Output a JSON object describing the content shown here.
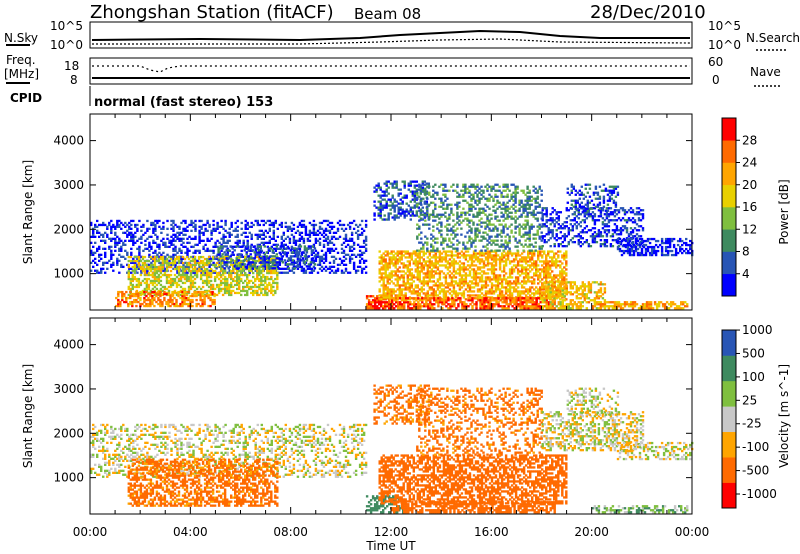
{
  "header": {
    "station": "Zhongshan Station (fitACF)",
    "beam": "Beam 08",
    "date": "28/Dec/2010"
  },
  "summary_panels": {
    "nsky": {
      "left_label": "N.Sky",
      "top_tick": "10^5",
      "bottom_tick": "10^0",
      "right_top_tick": "10^5",
      "right_bottom_tick": "10^0",
      "right_label": "N.Search"
    },
    "freq": {
      "left_label_1": "Freq.",
      "left_label_2": "[MHz]",
      "top_tick": "18",
      "bottom_tick": "8",
      "right_top_tick": "60",
      "right_bottom_tick": "0",
      "right_label": "Nave"
    },
    "cpid": {
      "label": "CPID",
      "mode": "normal (fast stereo) 153"
    }
  },
  "x_axis": {
    "label": "Time UT",
    "ticks": [
      "00:00",
      "04:00",
      "08:00",
      "12:00",
      "16:00",
      "20:00",
      "00:00"
    ],
    "hours": [
      0,
      4,
      8,
      12,
      16,
      20,
      24
    ]
  },
  "colors": {
    "power": [
      "#0000ff",
      "#2855b5",
      "#3e8a5f",
      "#7fbf3f",
      "#e8d000",
      "#ffa500",
      "#ff6a00",
      "#ff0000"
    ],
    "velocity": [
      "#ff0000",
      "#ff6a00",
      "#ffa500",
      "#c8c8c8",
      "#7fbf3f",
      "#3e8a5f",
      "#2855b5"
    ]
  },
  "chart_data": [
    {
      "type": "heatmap",
      "title": "",
      "ylabel": "Slant Range [km]",
      "xlabel": "",
      "ylim": [
        180,
        4600
      ],
      "yticks": [
        1000,
        2000,
        3000,
        4000
      ],
      "colorbar": {
        "label": "Power [dB]",
        "ticks": [
          "4",
          "8",
          "12",
          "16",
          "20",
          "24",
          "28"
        ],
        "range": [
          0,
          32
        ]
      },
      "regions": [
        {
          "t0": 0.0,
          "t1": 11.0,
          "r0": 1000,
          "r1": 2200,
          "val": 3,
          "density": 0.35
        },
        {
          "t0": 1.5,
          "t1": 7.5,
          "r0": 500,
          "r1": 1400,
          "val": 17,
          "density": 0.55
        },
        {
          "t0": 1.0,
          "t1": 5.0,
          "r0": 250,
          "r1": 600,
          "val": 24,
          "density": 0.6
        },
        {
          "t0": 5.0,
          "t1": 9.0,
          "r0": 1100,
          "r1": 1600,
          "val": 6,
          "density": 0.35
        },
        {
          "t0": 11.0,
          "t1": 12.0,
          "r0": 200,
          "r1": 500,
          "val": 28,
          "density": 0.8
        },
        {
          "t0": 11.3,
          "t1": 13.5,
          "r0": 2200,
          "r1": 3100,
          "val": 6,
          "density": 0.45
        },
        {
          "t0": 11.5,
          "t1": 19.0,
          "r0": 400,
          "r1": 1500,
          "val": 21,
          "density": 0.6
        },
        {
          "t0": 12.0,
          "t1": 18.5,
          "r0": 200,
          "r1": 450,
          "val": 26,
          "density": 0.7
        },
        {
          "t0": 13.0,
          "t1": 18.0,
          "r0": 1500,
          "r1": 3000,
          "val": 10,
          "density": 0.35
        },
        {
          "t0": 18.0,
          "t1": 20.5,
          "r0": 200,
          "r1": 800,
          "val": 20,
          "density": 0.55
        },
        {
          "t0": 18.0,
          "t1": 22.0,
          "r0": 1600,
          "r1": 2500,
          "val": 4,
          "density": 0.4
        },
        {
          "t0": 19.0,
          "t1": 21.0,
          "r0": 2400,
          "r1": 3000,
          "val": 5,
          "density": 0.35
        },
        {
          "t0": 20.0,
          "t1": 23.8,
          "r0": 200,
          "r1": 350,
          "val": 22,
          "density": 0.65
        },
        {
          "t0": 21.0,
          "t1": 24.0,
          "r0": 1400,
          "r1": 1800,
          "val": 3,
          "density": 0.5
        }
      ]
    },
    {
      "type": "heatmap",
      "title": "",
      "ylabel": "Slant Range [km]",
      "xlabel": "Time UT",
      "ylim": [
        180,
        4600
      ],
      "yticks": [
        1000,
        2000,
        3000,
        4000
      ],
      "colorbar": {
        "label": "Velocity [m s^-1]",
        "ticks": [
          "-1000",
          "-500",
          "-100",
          "-25",
          "25",
          "100",
          "500",
          "1000"
        ]
      },
      "regions": [
        {
          "t0": 0.0,
          "t1": 11.0,
          "r0": 1000,
          "r1": 2200,
          "val": 0,
          "density": 0.3
        },
        {
          "t0": 1.5,
          "t1": 7.5,
          "r0": 350,
          "r1": 1400,
          "val": -150,
          "density": 0.55
        },
        {
          "t0": 11.0,
          "t1": 12.5,
          "r0": 200,
          "r1": 600,
          "val": 300,
          "density": 0.5
        },
        {
          "t0": 11.3,
          "t1": 13.5,
          "r0": 2200,
          "r1": 3100,
          "val": -150,
          "density": 0.4
        },
        {
          "t0": 11.5,
          "t1": 19.0,
          "r0": 400,
          "r1": 1500,
          "val": -200,
          "density": 0.6
        },
        {
          "t0": 12.0,
          "t1": 18.5,
          "r0": 200,
          "r1": 450,
          "val": -250,
          "density": 0.65
        },
        {
          "t0": 13.0,
          "t1": 18.0,
          "r0": 1500,
          "r1": 3000,
          "val": -150,
          "density": 0.3
        },
        {
          "t0": 18.0,
          "t1": 22.0,
          "r0": 1600,
          "r1": 2500,
          "val": 0,
          "density": 0.4
        },
        {
          "t0": 19.0,
          "t1": 21.0,
          "r0": 2400,
          "r1": 3000,
          "val": 0,
          "density": 0.35
        },
        {
          "t0": 20.0,
          "t1": 23.8,
          "r0": 200,
          "r1": 350,
          "val": 60,
          "density": 0.5
        },
        {
          "t0": 21.0,
          "t1": 24.0,
          "r0": 1400,
          "r1": 1800,
          "val": 0,
          "density": 0.45
        }
      ]
    }
  ]
}
